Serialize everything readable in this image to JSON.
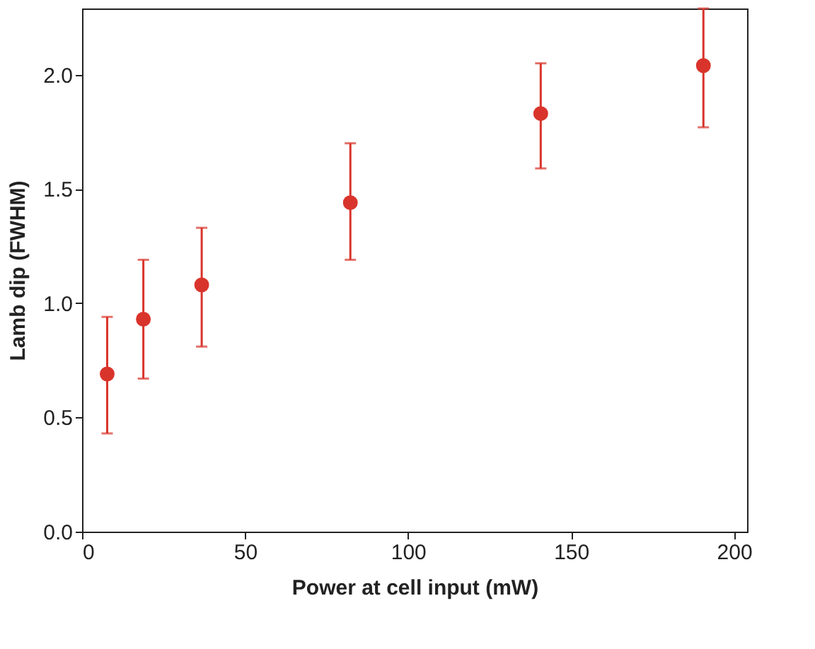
{
  "chart_data": {
    "type": "scatter",
    "xlabel": "Power at cell input (mW)",
    "ylabel": "Lamb dip (FWHM)",
    "x": [
      7.7,
      18.8,
      36.7,
      82.3,
      140.7,
      190.6
    ],
    "series": [
      {
        "color": "#d9342b",
        "values": [
          0.69,
          0.93,
          1.08,
          1.44,
          1.83,
          2.04
        ],
        "errors": [
          [
            0.43,
            0.94
          ],
          [
            0.67,
            1.19
          ],
          [
            0.81,
            1.33
          ],
          [
            1.19,
            1.7
          ],
          [
            1.59,
            2.05
          ],
          [
            1.77,
            2.29
          ]
        ]
      }
    ],
    "xlim": [
      0,
      204
    ],
    "xticks": [
      0,
      50,
      100,
      150,
      200
    ],
    "ylim": [
      0,
      2.29
    ],
    "yticks": [
      {
        "value": 0,
        "label": "0.0"
      },
      {
        "value": 0.5,
        "label": "0.5"
      },
      {
        "value": 1,
        "label": "1.0"
      },
      {
        "value": 1.5,
        "label": "1.5"
      },
      {
        "value": 2,
        "label": "2.0"
      }
    ],
    "grid": false,
    "marker": "circle"
  }
}
